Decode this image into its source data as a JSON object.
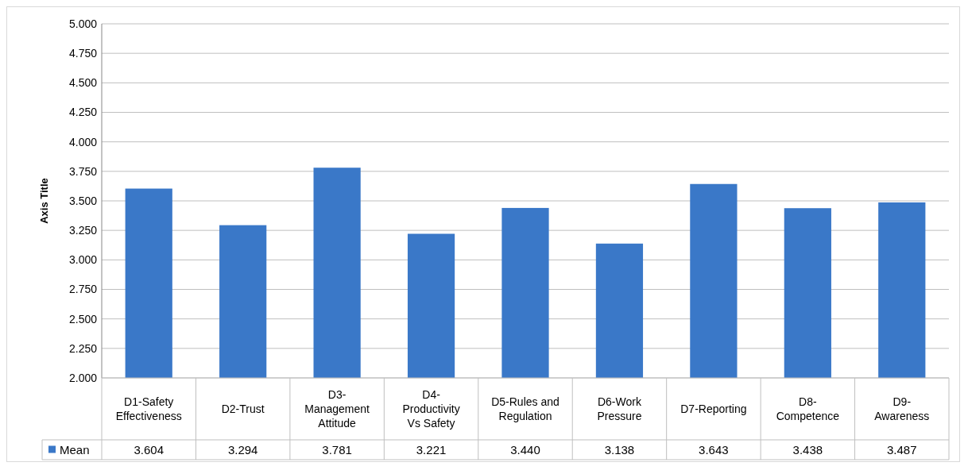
{
  "chart_data": {
    "type": "bar",
    "ylabel": "Axis Title",
    "categories": [
      "D1-Safety Effectiveness",
      "D2-Trust",
      "D3-Management Attitude",
      "D4-Productivity Vs Safety",
      "D5-Rules and Regulation",
      "D6-Work Pressure",
      "D7-Reporting",
      "D8-Competence",
      "D9-Awareness"
    ],
    "series": [
      {
        "name": "Mean",
        "color": "#3a78c8",
        "values": [
          3.604,
          3.294,
          3.781,
          3.221,
          3.44,
          3.138,
          3.643,
          3.438,
          3.487
        ],
        "value_labels": [
          "3.604",
          "3.294",
          "3.781",
          "3.221",
          "3.440",
          "3.138",
          "3.643",
          "3.438",
          "3.487"
        ]
      }
    ],
    "ylim": [
      2,
      5
    ],
    "yticks": [
      {
        "value": 2,
        "label": "2.000"
      },
      {
        "value": 2.25,
        "label": "2.250"
      },
      {
        "value": 2.5,
        "label": "2.500"
      },
      {
        "value": 2.75,
        "label": "2.750"
      },
      {
        "value": 3,
        "label": "3.000"
      },
      {
        "value": 3.25,
        "label": "3.250"
      },
      {
        "value": 3.5,
        "label": "3.500"
      },
      {
        "value": 3.75,
        "label": "3.750"
      },
      {
        "value": 4,
        "label": "4.000"
      },
      {
        "value": 4.25,
        "label": "4.250"
      },
      {
        "value": 4.5,
        "label": "4.500"
      },
      {
        "value": 4.75,
        "label": "4.750"
      },
      {
        "value": 5,
        "label": "5.000"
      }
    ],
    "grid": "y",
    "legend": "bottom"
  }
}
